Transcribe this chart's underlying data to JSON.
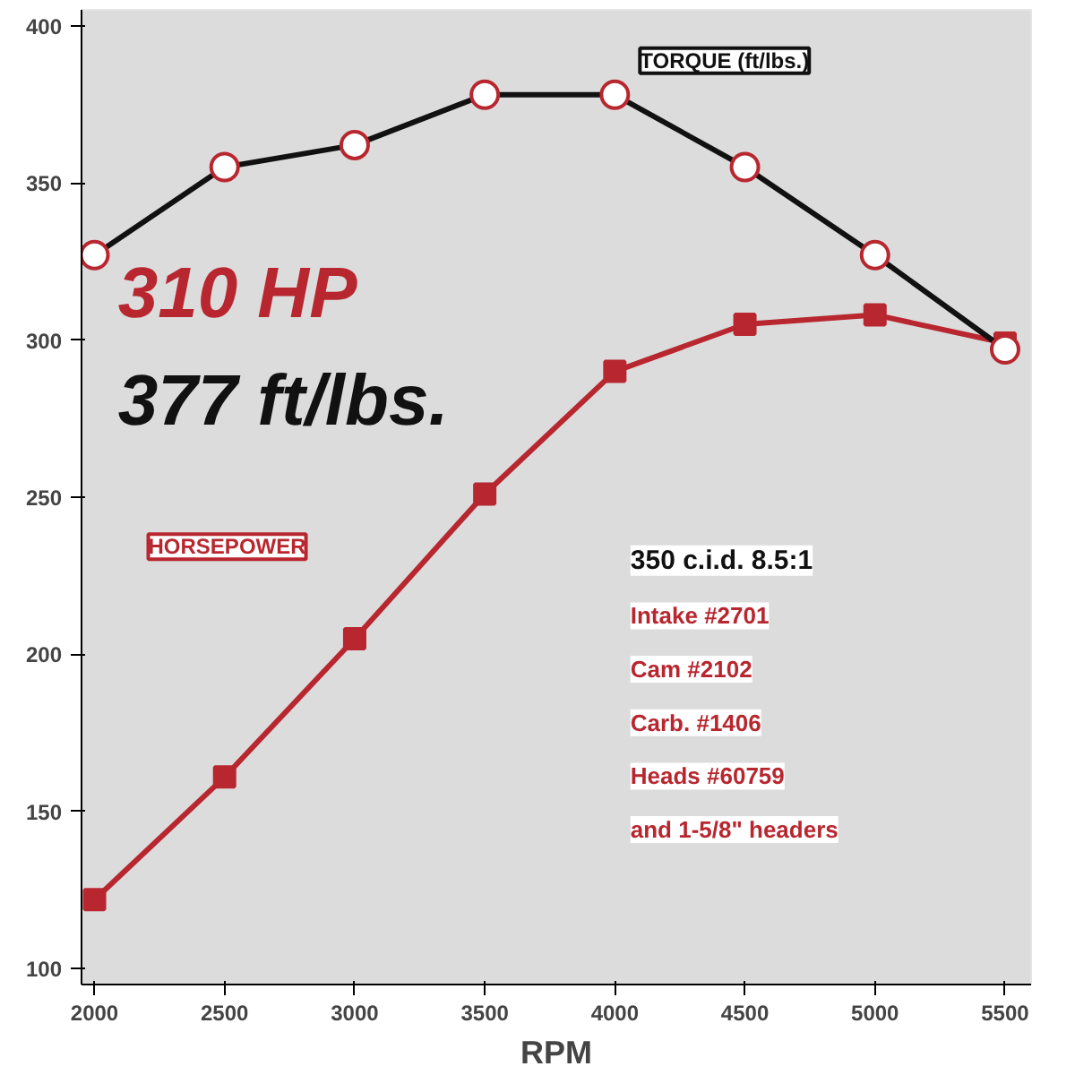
{
  "chart_data": {
    "type": "line",
    "xlabel": "RPM",
    "x": [
      2000,
      2500,
      3000,
      3500,
      4000,
      4500,
      5000,
      5500
    ],
    "series": [
      {
        "name": "TORQUE (ft/lbs.)",
        "color": "#111111",
        "marker": "circle",
        "values": [
          327,
          355,
          362,
          378,
          378,
          355,
          327,
          297
        ]
      },
      {
        "name": "HORSEPOWER",
        "color": "#b8272f",
        "marker": "square",
        "values": [
          122,
          161,
          205,
          251,
          290,
          305,
          308,
          299
        ]
      }
    ],
    "xlim": [
      1950,
      5600
    ],
    "ylim": [
      95,
      405
    ],
    "xticks": [
      2000,
      2500,
      3000,
      3500,
      4000,
      4500,
      5000,
      5500
    ],
    "yticks": [
      100,
      150,
      200,
      250,
      300,
      350,
      400
    ],
    "grid": false,
    "annotations": [
      "310 HP",
      "377 ft/lbs.",
      "350 c.i.d. 8.5:1",
      "Intake #2701",
      "Cam #2102",
      "Carb. #1406",
      "Heads #60759",
      "and 1-5/8\" headers"
    ]
  }
}
